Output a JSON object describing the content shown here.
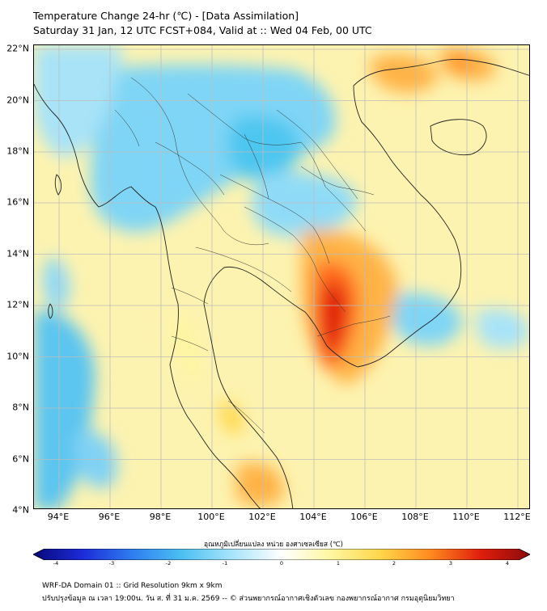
{
  "header": {
    "title_line1": "Temperature Change 24-hr (℃) - [Data Assimilation]",
    "title_line2": "Saturday 31 Jan, 12 UTC FCST+084, Valid at :: Wed 04 Feb, 00 UTC"
  },
  "map": {
    "lat_labels": [
      "22°N",
      "20°N",
      "18°N",
      "16°N",
      "14°N",
      "12°N",
      "10°N",
      "8°N",
      "6°N",
      "4°N"
    ],
    "lon_labels": [
      "94°E",
      "96°E",
      "98°E",
      "100°E",
      "102°E",
      "104°E",
      "106°E",
      "108°E",
      "110°E",
      "112°E"
    ],
    "extent": {
      "lat_min": 4,
      "lat_max": 22,
      "lon_min": 93,
      "lon_max": 112.5
    },
    "background_color": "#fdf3b0",
    "grid_color": "#bdbdbd"
  },
  "colorbar": {
    "title": "อุณหภูมิเปลี่ยนแปลง หน่วย องศาเซลเซียส (℃)",
    "ticks": [
      "-4",
      "-3",
      "-2",
      "-1",
      "0",
      "1",
      "2",
      "3",
      "4"
    ],
    "min": -4,
    "max": 4,
    "colors": [
      "#08087a",
      "#1c2bd8",
      "#2f7ef0",
      "#4cc0f2",
      "#a7e4fb",
      "#ffffff",
      "#fff6a0",
      "#ffd64a",
      "#ff8a1f",
      "#e01e0c",
      "#8c0a0a"
    ]
  },
  "footer": {
    "line1": "WRF-DA Domain 01 :: Grid Resolution 9km x 9km",
    "line2": "ปรับปรุงข้อมูล ณ เวลา 19:00น. วัน ส. ที่ 31 ม.ค. 2569 -- © ส่วนพยากรณ์อากาศเชิงตัวเลข กองพยากรณ์อากาศ กรมอุตุนิยมวิทยา"
  }
}
